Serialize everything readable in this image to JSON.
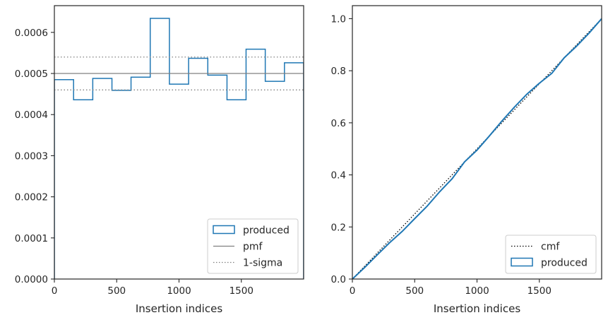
{
  "chart_data": [
    {
      "type": "step",
      "xlabel": "Insertion indices",
      "ylabel": "",
      "xlim": [
        0,
        2000
      ],
      "ylim": [
        0,
        0.000665
      ],
      "xticks": [
        0,
        500,
        1000,
        1500
      ],
      "xtick_labels": [
        "0",
        "500",
        "1000",
        "1500"
      ],
      "yticks": [
        0,
        0.0001,
        0.0002,
        0.0003,
        0.0004,
        0.0005,
        0.0006
      ],
      "ytick_labels": [
        "0.0000",
        "0.0001",
        "0.0002",
        "0.0003",
        "0.0004",
        "0.0005",
        "0.0006"
      ],
      "legend_position": "lower-right",
      "series": [
        {
          "name": "produced",
          "style": "step",
          "color": "#1f77b4",
          "bin_edges": [
            0,
            154,
            308,
            462,
            615,
            769,
            923,
            1077,
            1231,
            1385,
            1538,
            1692,
            1846,
            2000
          ],
          "values": [
            0.000485,
            0.000436,
            0.000488,
            0.000459,
            0.000491,
            0.000634,
            0.000474,
            0.000537,
            0.000496,
            0.000436,
            0.000559,
            0.000481,
            0.000526
          ]
        },
        {
          "name": "pmf",
          "style": "solid",
          "color": "#808080",
          "value": 0.0005
        },
        {
          "name": "1-sigma",
          "style": "dotted",
          "color": "#808080",
          "values": [
            0.00046,
            0.00054
          ]
        }
      ]
    },
    {
      "type": "line",
      "xlabel": "Insertion indices",
      "ylabel": "",
      "xlim": [
        0,
        2000
      ],
      "ylim": [
        0,
        1.05
      ],
      "xticks": [
        0,
        500,
        1000,
        1500
      ],
      "xtick_labels": [
        "0",
        "500",
        "1000",
        "1500"
      ],
      "yticks": [
        0,
        0.2,
        0.4,
        0.6,
        0.8,
        1.0
      ],
      "ytick_labels": [
        "0.0",
        "0.2",
        "0.4",
        "0.6",
        "0.8",
        "1.0"
      ],
      "legend_position": "lower-right",
      "series": [
        {
          "name": "cmf",
          "style": "dotted",
          "color": "#000000",
          "x": [
            0,
            2000
          ],
          "y": [
            0,
            1
          ]
        },
        {
          "name": "produced",
          "style": "solid",
          "color": "#1f77b4",
          "x": [
            0,
            100,
            200,
            300,
            400,
            500,
            600,
            700,
            800,
            900,
            1000,
            1100,
            1200,
            1300,
            1400,
            1500,
            1600,
            1700,
            1800,
            1900,
            2000
          ],
          "y": [
            0,
            0.045,
            0.093,
            0.14,
            0.183,
            0.232,
            0.28,
            0.335,
            0.385,
            0.45,
            0.495,
            0.55,
            0.607,
            0.66,
            0.71,
            0.752,
            0.79,
            0.85,
            0.895,
            0.945,
            1.0
          ]
        }
      ]
    }
  ]
}
